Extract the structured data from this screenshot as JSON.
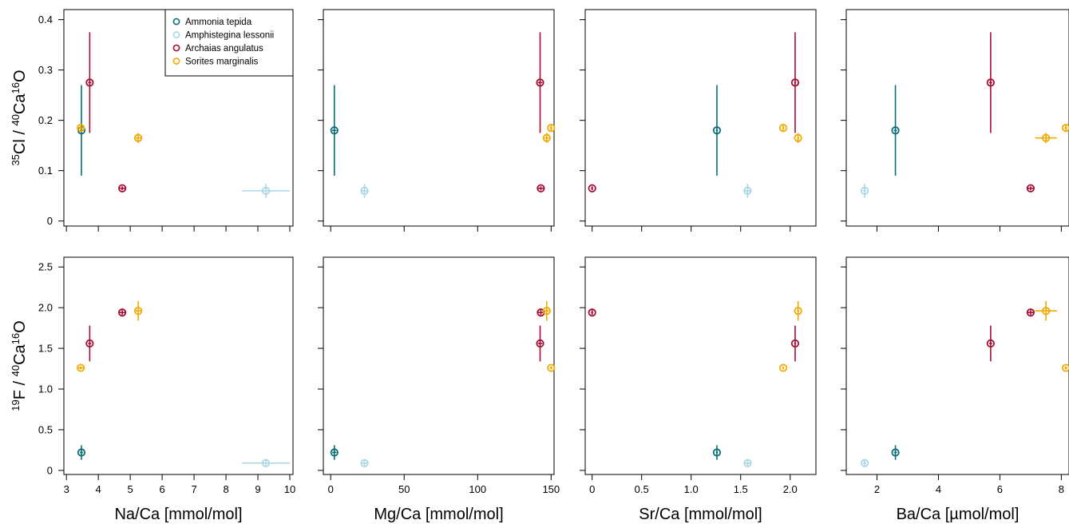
{
  "chart_data": {
    "type": "scatter",
    "series_names": [
      "Ammonia tepida",
      "Amphistegina lessonii",
      "Archaias angulatus",
      "Sorites marginalis"
    ],
    "colors": {
      "Ammonia tepida": "#0b6e78",
      "Amphistegina lessonii": "#a9d7e6",
      "Archaias angulatus": "#a50f34",
      "Sorites marginalis": "#f2a900"
    },
    "legend_position": "top-right of first panel",
    "rows": [
      {
        "ylabel": {
          "iso1": "35",
          "mid": "Cl / ",
          "iso2": "40",
          "ca": "Ca",
          "iso3": "16",
          "end": "O"
        },
        "ylim": [
          -0.01,
          0.42
        ],
        "yticks": [
          0,
          0.1,
          0.2,
          0.3,
          0.4
        ],
        "ytick_labels": [
          "0",
          "0.1",
          "0.2",
          "0.3",
          "0.4"
        ]
      },
      {
        "ylabel": {
          "iso1": "19",
          "mid": "F / ",
          "iso2": "40",
          "ca": "Ca",
          "iso3": "16",
          "end": "O"
        },
        "ylim": [
          -0.05,
          2.62
        ],
        "yticks": [
          0,
          0.5,
          1.0,
          1.5,
          2.0,
          2.5
        ],
        "ytick_labels": [
          "0",
          "0.5",
          "1.0",
          "1.5",
          "2.0",
          "2.5"
        ]
      }
    ],
    "columns": [
      {
        "xlabel": "Na/Ca  [mmol/mol]",
        "xlim": [
          2.92,
          10.1
        ],
        "xticks": [
          3,
          4,
          5,
          6,
          7,
          8,
          9,
          10
        ],
        "xtick_labels": [
          "3",
          "4",
          "5",
          "6",
          "7",
          "8",
          "9",
          "10"
        ]
      },
      {
        "xlabel": "Mg/Ca [mmol/mol]",
        "xlim": [
          -5,
          152
        ],
        "xticks": [
          0,
          50,
          100,
          150
        ],
        "xtick_labels": [
          "0",
          "50",
          "100",
          "150"
        ]
      },
      {
        "xlabel": "Sr/Ca [mmol/mol]",
        "xlim": [
          -0.07,
          2.26
        ],
        "xticks": [
          0,
          0.5,
          1.0,
          1.5,
          2.0
        ],
        "xtick_labels": [
          "0",
          "0.5",
          "1.0",
          "1.5",
          "2.0"
        ]
      },
      {
        "xlabel": "Ba/Ca [µmol/mol]",
        "xlim": [
          1.0,
          8.25
        ],
        "xticks": [
          2,
          4,
          6,
          8
        ],
        "xtick_labels": [
          "2",
          "4",
          "6",
          "8"
        ]
      }
    ],
    "points": [
      {
        "series": "Ammonia tepida",
        "NaCa": 3.47,
        "NaCa_err": 0.05,
        "MgCa": 2.5,
        "MgCa_err": 1.5,
        "SrCa": 1.26,
        "SrCa_err": 0.01,
        "BaCa": 2.6,
        "BaCa_err": 0.05,
        "Cl": 0.18,
        "Cl_err": 0.09,
        "F": 0.22,
        "F_err": 0.09
      },
      {
        "series": "Amphistegina lessonii",
        "NaCa": 9.25,
        "NaCa_err": 0.75,
        "MgCa": 23.0,
        "MgCa_err": 2.0,
        "SrCa": 1.57,
        "SrCa_err": 0.03,
        "BaCa": 1.6,
        "BaCa_err": 0.05,
        "Cl": 0.06,
        "Cl_err": 0.014,
        "F": 0.09,
        "F_err": 0.03
      },
      {
        "series": "Archaias angulatus",
        "NaCa": 3.73,
        "NaCa_err": 0.05,
        "MgCa": 142.5,
        "MgCa_err": 1.5,
        "SrCa": 2.05,
        "SrCa_err": 0.01,
        "BaCa": 5.7,
        "BaCa_err": 0.05,
        "Cl": 0.275,
        "Cl_err": 0.1,
        "F": 1.56,
        "F_err": 0.22
      },
      {
        "series": "Archaias angulatus",
        "NaCa": 4.75,
        "NaCa_err": 0.1,
        "MgCa": 143.0,
        "MgCa_err": 2.0,
        "SrCa": 0.0,
        "SrCa_err": 0.01,
        "BaCa": 7.0,
        "BaCa_err": 0.1,
        "Cl": 0.065,
        "Cl_err": 0.004,
        "F": 1.94,
        "F_err": 0.03
      },
      {
        "series": "Sorites marginalis",
        "NaCa": 5.25,
        "NaCa_err": 0.08,
        "MgCa": 147.0,
        "MgCa_err": 1.5,
        "SrCa": 2.08,
        "SrCa_err": 0.01,
        "BaCa": 7.5,
        "BaCa_err": 0.35,
        "Cl": 0.165,
        "Cl_err": 0.01,
        "F": 1.96,
        "F_err": 0.12
      },
      {
        "series": "Sorites marginalis",
        "NaCa": 3.45,
        "NaCa_err": 0.1,
        "MgCa": 150.0,
        "MgCa_err": 1.0,
        "SrCa": 1.93,
        "SrCa_err": 0.01,
        "BaCa": 8.15,
        "BaCa_err": 0.05,
        "Cl": 0.185,
        "Cl_err": 0.005,
        "F": 1.26,
        "F_err": 0.02
      }
    ]
  }
}
